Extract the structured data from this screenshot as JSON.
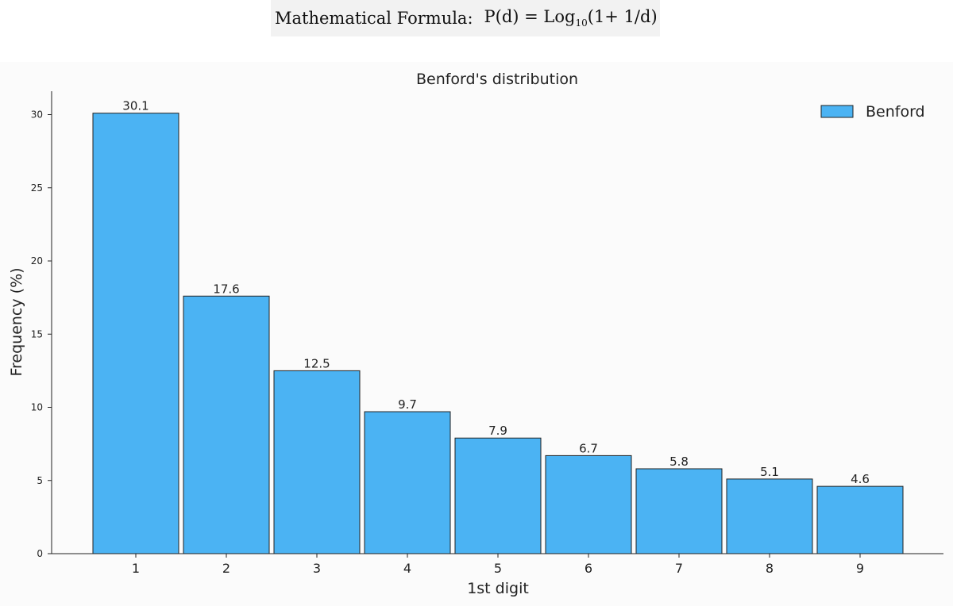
{
  "formula": {
    "label": "Mathematical Formula:",
    "lhs": "P(d) = Log",
    "base": "10",
    "rhs": "(1+ 1/d)"
  },
  "chart_data": {
    "type": "bar",
    "title": "Benford's distribution",
    "xlabel": "1st digit",
    "ylabel": "Frequency (%)",
    "categories": [
      "1",
      "2",
      "3",
      "4",
      "5",
      "6",
      "7",
      "8",
      "9"
    ],
    "series": [
      {
        "name": "Benford",
        "values": [
          30.1,
          17.6,
          12.5,
          9.7,
          7.9,
          6.7,
          5.8,
          5.1,
          4.6
        ],
        "color": "#4bb3f3"
      }
    ],
    "data_labels": [
      "30.1",
      "17.6",
      "12.5",
      "9.7",
      "7.9",
      "6.7",
      "5.8",
      "5.1",
      "4.6"
    ],
    "ylim": [
      0,
      31.5
    ],
    "yticks": [
      0,
      5,
      10,
      15,
      20,
      25,
      30
    ],
    "grid": false,
    "legend": "top-right"
  }
}
